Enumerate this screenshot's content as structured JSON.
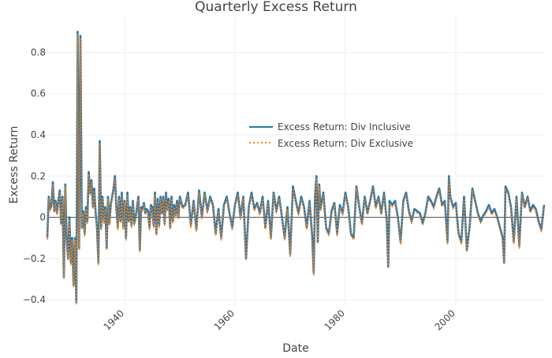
{
  "chart_data": {
    "type": "line",
    "title": "Quarterly Excess Return",
    "xlabel": "Date",
    "ylabel": "Excess Return",
    "x_range": [
      1926.0,
      2016.0
    ],
    "y_range": [
      -0.43,
      0.97
    ],
    "x_ticks": [
      1940,
      1960,
      1980,
      2000
    ],
    "x_tick_labels": [
      "1940",
      "1960",
      "1980",
      "2000"
    ],
    "y_ticks": [
      -0.4,
      -0.2,
      0,
      0.2,
      0.4,
      0.6,
      0.8
    ],
    "y_tick_labels": [
      "−0.4",
      "−0.2",
      "0",
      "0.2",
      "0.4",
      "0.6",
      "0.8"
    ],
    "grid": true,
    "legend_position": "center-right",
    "x": [
      1926.0,
      1926.25,
      1926.5,
      1926.75,
      1927.0,
      1927.25,
      1927.5,
      1927.75,
      1928.0,
      1928.25,
      1928.5,
      1928.75,
      1929.0,
      1929.25,
      1929.5,
      1929.75,
      1930.0,
      1930.25,
      1930.5,
      1930.75,
      1931.0,
      1931.25,
      1931.5,
      1931.75,
      1932.0,
      1932.25,
      1932.5,
      1932.75,
      1933.0,
      1933.25,
      1933.5,
      1933.75,
      1934.0,
      1934.25,
      1934.5,
      1934.75,
      1935.0,
      1935.25,
      1935.5,
      1935.75,
      1936.0,
      1936.25,
      1936.5,
      1936.75,
      1937.0,
      1937.25,
      1937.5,
      1937.75,
      1938.0,
      1938.25,
      1938.5,
      1938.75,
      1939.0,
      1939.25,
      1939.5,
      1939.75,
      1940.0,
      1940.25,
      1940.5,
      1940.75,
      1941.0,
      1941.25,
      1941.5,
      1941.75,
      1942.0,
      1942.25,
      1942.5,
      1942.75,
      1943.0,
      1943.25,
      1943.5,
      1943.75,
      1944.0,
      1944.25,
      1944.5,
      1944.75,
      1945.0,
      1945.25,
      1945.5,
      1945.75,
      1946.0,
      1946.25,
      1946.5,
      1946.75,
      1947.0,
      1947.25,
      1947.5,
      1947.75,
      1948.0,
      1948.25,
      1948.5,
      1948.75,
      1949.0,
      1949.25,
      1949.5,
      1949.75,
      1950.0,
      1950.5,
      1951.0,
      1951.5,
      1952.0,
      1952.5,
      1953.0,
      1953.5,
      1954.0,
      1954.5,
      1955.0,
      1955.5,
      1956.0,
      1956.5,
      1957.0,
      1957.5,
      1958.0,
      1958.5,
      1959.0,
      1959.5,
      1960.0,
      1960.5,
      1961.0,
      1961.5,
      1962.0,
      1962.5,
      1963.0,
      1963.5,
      1964.0,
      1964.5,
      1965.0,
      1965.5,
      1966.0,
      1966.5,
      1967.0,
      1967.5,
      1968.0,
      1968.5,
      1969.0,
      1969.5,
      1970.0,
      1970.5,
      1971.0,
      1971.5,
      1972.0,
      1972.5,
      1973.0,
      1973.5,
      1974.0,
      1974.25,
      1974.5,
      1974.75,
      1975.0,
      1975.25,
      1975.5,
      1976.0,
      1976.5,
      1977.0,
      1977.5,
      1978.0,
      1978.5,
      1979.0,
      1979.5,
      1980.0,
      1980.5,
      1981.0,
      1981.5,
      1982.0,
      1982.5,
      1983.0,
      1983.5,
      1984.0,
      1984.5,
      1985.0,
      1985.5,
      1986.0,
      1986.5,
      1987.0,
      1987.5,
      1987.75,
      1988.0,
      1988.5,
      1989.0,
      1989.5,
      1990.0,
      1990.5,
      1991.0,
      1991.5,
      1992.0,
      1992.5,
      1993.0,
      1993.5,
      1994.0,
      1994.5,
      1995.0,
      1995.5,
      1996.0,
      1996.5,
      1997.0,
      1997.5,
      1998.0,
      1998.5,
      1998.75,
      1999.0,
      1999.5,
      2000.0,
      2000.5,
      2001.0,
      2001.5,
      2002.0,
      2002.5,
      2003.0,
      2003.5,
      2004.0,
      2004.5,
      2005.0,
      2005.5,
      2006.0,
      2006.5,
      2007.0,
      2007.5,
      2008.0,
      2008.5,
      2008.75,
      2009.0,
      2009.5,
      2010.0,
      2010.5,
      2011.0,
      2011.5,
      2012.0,
      2012.5,
      2013.0,
      2013.5,
      2014.0,
      2014.5,
      2015.0,
      2015.5,
      2016.0
    ],
    "series": [
      {
        "name": "Excess Return: Div Inclusive",
        "color": "#1f77b4",
        "style": "solid",
        "values": [
          -0.1,
          0.1,
          0.04,
          0.06,
          0.17,
          0.03,
          0.08,
          0.02,
          0.08,
          0.13,
          -0.03,
          0.1,
          -0.29,
          0.16,
          -0.1,
          -0.2,
          0.0,
          -0.22,
          -0.1,
          -0.33,
          -0.1,
          -0.41,
          0.9,
          -0.15,
          0.88,
          -0.05,
          0.03,
          -0.08,
          0.05,
          -0.02,
          0.22,
          0.12,
          0.18,
          0.05,
          0.14,
          0.02,
          -0.05,
          -0.22,
          0.37,
          -0.05,
          0.1,
          -0.02,
          0.05,
          -0.15,
          0.1,
          -0.03,
          0.06,
          0.1,
          0.14,
          0.2,
          0.05,
          -0.05,
          0.1,
          -0.02,
          0.12,
          -0.05,
          0.08,
          -0.1,
          0.12,
          -0.02,
          0.05,
          -0.04,
          0.08,
          -0.03,
          0.0,
          0.05,
          0.1,
          -0.16,
          0.05,
          0.04,
          0.07,
          0.02,
          0.04,
          0.03,
          -0.05,
          0.06,
          0.05,
          -0.04,
          0.12,
          -0.08,
          0.09,
          -0.04,
          0.1,
          0.02,
          0.1,
          -0.03,
          0.12,
          0.04,
          0.09,
          -0.05,
          0.1,
          -0.02,
          0.06,
          0.01,
          0.08,
          0.0,
          0.1,
          0.05,
          0.06,
          0.12,
          -0.04,
          0.08,
          -0.06,
          0.13,
          0.0,
          0.12,
          0.03,
          0.1,
          0.06,
          -0.08,
          0.04,
          -0.1,
          0.06,
          0.1,
          0.02,
          -0.05,
          0.06,
          0.12,
          0.0,
          0.1,
          -0.2,
          0.05,
          0.12,
          0.04,
          0.07,
          0.02,
          0.1,
          -0.05,
          0.08,
          -0.1,
          0.12,
          0.03,
          0.1,
          0.0,
          -0.1,
          0.05,
          -0.18,
          0.15,
          0.08,
          0.02,
          0.1,
          0.05,
          -0.05,
          0.08,
          -0.1,
          -0.27,
          0.1,
          0.2,
          -0.12,
          0.16,
          0.04,
          0.12,
          -0.05,
          -0.08,
          0.03,
          0.07,
          -0.08,
          0.06,
          0.02,
          0.12,
          0.05,
          -0.08,
          -0.1,
          0.15,
          0.05,
          -0.03,
          0.1,
          0.02,
          0.08,
          0.15,
          0.05,
          0.1,
          0.02,
          0.12,
          -0.02,
          -0.24,
          0.08,
          0.06,
          0.08,
          0.0,
          -0.12,
          0.08,
          0.12,
          0.03,
          -0.02,
          0.04,
          0.03,
          0.02,
          -0.03,
          0.02,
          0.1,
          0.08,
          0.05,
          0.1,
          0.14,
          0.06,
          0.08,
          -0.12,
          0.2,
          0.1,
          0.05,
          0.07,
          -0.08,
          -0.12,
          0.1,
          -0.16,
          -0.05,
          0.14,
          0.08,
          0.02,
          -0.02,
          0.01,
          0.03,
          0.06,
          0.02,
          0.04,
          0.0,
          -0.05,
          -0.1,
          -0.22,
          0.15,
          0.12,
          0.05,
          -0.12,
          0.1,
          -0.14,
          0.12,
          0.05,
          0.1,
          0.03,
          0.06,
          0.04,
          -0.02,
          -0.06,
          0.06
        ]
      },
      {
        "name": "Excess Return: Div Exclusive",
        "color": "#ff7f0e",
        "style": "dotted",
        "values": [
          -0.11,
          0.09,
          0.03,
          0.05,
          0.16,
          0.02,
          0.07,
          0.01,
          0.07,
          0.12,
          -0.04,
          0.09,
          -0.3,
          0.15,
          -0.11,
          -0.21,
          -0.01,
          -0.23,
          -0.11,
          -0.34,
          -0.11,
          -0.42,
          0.89,
          -0.16,
          0.87,
          -0.06,
          0.02,
          -0.09,
          0.04,
          -0.03,
          0.21,
          0.11,
          0.17,
          0.04,
          0.13,
          0.01,
          -0.06,
          -0.23,
          0.36,
          -0.06,
          0.09,
          -0.03,
          0.04,
          -0.16,
          0.09,
          -0.04,
          0.05,
          0.09,
          0.13,
          0.19,
          0.04,
          -0.06,
          0.09,
          -0.03,
          0.11,
          -0.06,
          0.07,
          -0.11,
          0.11,
          -0.03,
          0.04,
          -0.05,
          0.07,
          -0.04,
          -0.01,
          0.04,
          0.09,
          -0.17,
          0.04,
          0.03,
          0.06,
          0.01,
          0.03,
          0.02,
          -0.06,
          0.05,
          0.04,
          -0.05,
          0.11,
          -0.09,
          0.08,
          -0.05,
          0.09,
          0.01,
          0.09,
          -0.04,
          0.11,
          0.03,
          0.08,
          -0.06,
          0.09,
          -0.03,
          0.05,
          0.0,
          0.07,
          -0.01,
          0.09,
          0.04,
          0.05,
          0.11,
          -0.05,
          0.07,
          -0.07,
          0.12,
          -0.01,
          0.11,
          0.02,
          0.09,
          0.05,
          -0.09,
          0.03,
          -0.11,
          0.05,
          0.09,
          0.01,
          -0.06,
          0.05,
          0.11,
          -0.01,
          0.09,
          -0.21,
          0.04,
          0.11,
          0.03,
          0.06,
          0.01,
          0.09,
          -0.06,
          0.07,
          -0.11,
          0.11,
          0.02,
          0.09,
          -0.01,
          -0.11,
          0.04,
          -0.19,
          0.14,
          0.07,
          0.01,
          0.09,
          0.04,
          -0.06,
          0.07,
          -0.11,
          -0.28,
          0.09,
          0.19,
          -0.13,
          0.15,
          0.03,
          0.11,
          -0.06,
          -0.09,
          0.02,
          0.06,
          -0.09,
          0.05,
          0.01,
          0.11,
          0.04,
          -0.09,
          -0.11,
          0.14,
          0.04,
          -0.04,
          0.09,
          0.01,
          0.07,
          0.14,
          0.04,
          0.09,
          0.01,
          0.11,
          -0.03,
          -0.25,
          0.07,
          0.05,
          0.07,
          -0.01,
          -0.13,
          0.07,
          0.11,
          0.02,
          -0.03,
          0.03,
          0.02,
          0.01,
          -0.04,
          0.01,
          0.09,
          0.07,
          0.04,
          0.09,
          0.13,
          0.05,
          0.07,
          -0.13,
          0.19,
          0.09,
          0.04,
          0.06,
          -0.09,
          -0.13,
          0.09,
          -0.17,
          -0.06,
          0.13,
          0.07,
          0.01,
          -0.03,
          0.0,
          0.02,
          0.05,
          0.01,
          0.03,
          -0.01,
          -0.06,
          -0.11,
          -0.23,
          0.14,
          0.11,
          0.04,
          -0.13,
          0.09,
          -0.15,
          0.11,
          0.04,
          0.09,
          0.02,
          0.05,
          0.03,
          -0.03,
          -0.07,
          0.05
        ]
      }
    ]
  }
}
